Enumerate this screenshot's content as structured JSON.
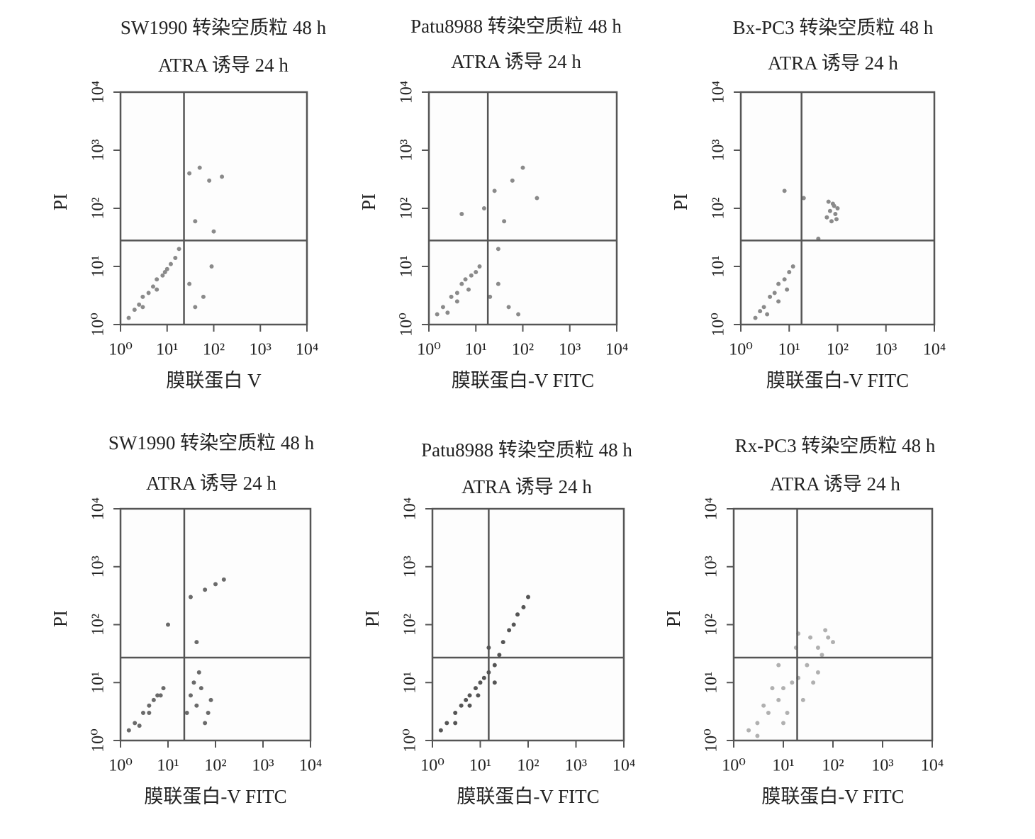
{
  "chart_data": [
    {
      "type": "scatter",
      "title": "SW1990 转染空质粒 48 h",
      "subtitle": "ATRA 诱导 24 h",
      "xlabel": "膜联蛋白 V",
      "ylabel": "PI",
      "x": [
        1.5,
        2,
        2.5,
        3,
        4,
        5,
        6,
        8,
        10,
        12,
        15,
        18,
        3,
        6,
        9,
        30,
        50,
        80,
        150,
        40,
        100,
        30,
        60,
        90,
        40
      ],
      "y": [
        1.3,
        1.8,
        2.2,
        3,
        3.5,
        4.5,
        6,
        7,
        9,
        11,
        14,
        20,
        2,
        4,
        8,
        400,
        500,
        300,
        350,
        60,
        40,
        5,
        3,
        10,
        2
      ],
      "color": "#8a8a8a",
      "log_x": true,
      "log_y": true,
      "xlim": [
        1,
        10000
      ],
      "ylim": [
        1,
        10000
      ],
      "xticks": [
        {
          "value": 1,
          "label": "10⁰"
        },
        {
          "value": 10,
          "label": "10¹"
        },
        {
          "value": 100,
          "label": "10²"
        },
        {
          "value": 1000,
          "label": "10³"
        },
        {
          "value": 10000,
          "label": "10⁴"
        }
      ],
      "yticks": [
        {
          "value": 1,
          "label": "10⁰"
        },
        {
          "value": 10,
          "label": "10¹"
        },
        {
          "value": 100,
          "label": "10²"
        },
        {
          "value": 1000,
          "label": "10³"
        },
        {
          "value": 10000,
          "label": "10⁴"
        }
      ],
      "quadrant": {
        "x": 23,
        "y": 28
      }
    },
    {
      "type": "scatter",
      "title": "Patu8988 转染空质粒 48 h",
      "subtitle": "ATRA 诱导 24 h",
      "xlabel": "膜联蛋白-V FITC",
      "ylabel": "PI",
      "x": [
        1.5,
        2,
        3,
        4,
        5,
        6,
        8,
        10,
        2.5,
        4,
        7,
        12,
        20,
        30,
        50,
        80,
        25,
        60,
        100,
        200,
        40,
        15,
        30,
        5
      ],
      "y": [
        1.5,
        2,
        3,
        3.5,
        5,
        6,
        7,
        8,
        1.6,
        2.5,
        4,
        10,
        3,
        5,
        2,
        1.5,
        200,
        300,
        500,
        150,
        60,
        100,
        20,
        80
      ],
      "color": "#8a8a8a",
      "log_x": true,
      "log_y": true,
      "xlim": [
        1,
        10000
      ],
      "ylim": [
        1,
        10000
      ],
      "xticks": [
        {
          "value": 1,
          "label": "10⁰"
        },
        {
          "value": 10,
          "label": "10¹"
        },
        {
          "value": 100,
          "label": "10²"
        },
        {
          "value": 1000,
          "label": "10³"
        },
        {
          "value": 10000,
          "label": "10⁴"
        }
      ],
      "yticks": [
        {
          "value": 1,
          "label": "10⁰"
        },
        {
          "value": 10,
          "label": "10¹"
        },
        {
          "value": 100,
          "label": "10²"
        },
        {
          "value": 1000,
          "label": "10³"
        },
        {
          "value": 10000,
          "label": "10⁴"
        }
      ],
      "quadrant": {
        "x": 18,
        "y": 28
      }
    },
    {
      "type": "scatter",
      "title": "Bx-PC3 转染空质粒 48 h",
      "subtitle": "ATRA 诱导 24 h",
      "xlabel": "膜联蛋白-V FITC",
      "ylabel": "PI",
      "x": [
        2,
        2.5,
        3,
        4,
        5,
        6,
        8,
        10,
        12,
        3.5,
        6,
        9,
        60,
        70,
        80,
        90,
        100,
        75,
        85,
        65,
        95,
        20,
        40,
        8
      ],
      "y": [
        1.3,
        1.7,
        2,
        3,
        3.5,
        5,
        6,
        8,
        10,
        1.5,
        2.5,
        4,
        70,
        90,
        120,
        80,
        100,
        60,
        110,
        130,
        65,
        150,
        30,
        200
      ],
      "color": "#8a8a8a",
      "log_x": true,
      "log_y": true,
      "xlim": [
        1,
        10000
      ],
      "ylim": [
        1,
        10000
      ],
      "xticks": [
        {
          "value": 1,
          "label": "10⁰"
        },
        {
          "value": 10,
          "label": "10¹"
        },
        {
          "value": 100,
          "label": "10²"
        },
        {
          "value": 1000,
          "label": "10³"
        },
        {
          "value": 10000,
          "label": "10⁴"
        }
      ],
      "yticks": [
        {
          "value": 1,
          "label": "10⁰"
        },
        {
          "value": 10,
          "label": "10¹"
        },
        {
          "value": 100,
          "label": "10²"
        },
        {
          "value": 1000,
          "label": "10³"
        },
        {
          "value": 10000,
          "label": "10⁴"
        }
      ],
      "quadrant": {
        "x": 18,
        "y": 28
      }
    },
    {
      "type": "scatter",
      "title": "SW1990 转染空质粒 48 h",
      "subtitle": "ATRA 诱导 24 h",
      "xlabel": "膜联蛋白-V FITC",
      "ylabel": "PI",
      "x": [
        1.5,
        2,
        3,
        4,
        5,
        6,
        8,
        2.5,
        4,
        7,
        25,
        30,
        40,
        50,
        60,
        80,
        35,
        45,
        70,
        30,
        60,
        100,
        150,
        40,
        10
      ],
      "y": [
        1.5,
        2,
        3,
        4,
        5,
        6,
        8,
        1.8,
        3,
        6,
        3,
        6,
        4,
        8,
        2,
        5,
        10,
        15,
        3,
        300,
        400,
        500,
        600,
        50,
        100
      ],
      "color": "#6a6a6a",
      "log_x": true,
      "log_y": true,
      "xlim": [
        1,
        10000
      ],
      "ylim": [
        1,
        10000
      ],
      "xticks": [
        {
          "value": 1,
          "label": "10⁰"
        },
        {
          "value": 10,
          "label": "10¹"
        },
        {
          "value": 100,
          "label": "10²"
        },
        {
          "value": 1000,
          "label": "10³"
        },
        {
          "value": 10000,
          "label": "10⁴"
        }
      ],
      "yticks": [
        {
          "value": 1,
          "label": "10⁰"
        },
        {
          "value": 10,
          "label": "10¹"
        },
        {
          "value": 100,
          "label": "10²"
        },
        {
          "value": 1000,
          "label": "10³"
        },
        {
          "value": 10000,
          "label": "10⁴"
        }
      ],
      "quadrant": {
        "x": 22,
        "y": 27
      }
    },
    {
      "type": "scatter",
      "title": "Patu8988 转染空质粒 48 h",
      "subtitle": "ATRA 诱导 24 h",
      "xlabel": "膜联蛋白-V FITC",
      "ylabel": "PI",
      "x": [
        1.5,
        2,
        3,
        4,
        5,
        6,
        8,
        10,
        12,
        15,
        3,
        6,
        9,
        20,
        25,
        30,
        40,
        50,
        80,
        100,
        20,
        15,
        60
      ],
      "y": [
        1.5,
        2,
        3,
        4,
        5,
        6,
        8,
        10,
        12,
        15,
        2,
        4,
        6,
        20,
        30,
        50,
        80,
        100,
        200,
        300,
        10,
        40,
        150
      ],
      "color": "#555555",
      "log_x": true,
      "log_y": true,
      "xlim": [
        1,
        10000
      ],
      "ylim": [
        1,
        10000
      ],
      "xticks": [
        {
          "value": 1,
          "label": "10⁰"
        },
        {
          "value": 10,
          "label": "10¹"
        },
        {
          "value": 100,
          "label": "10²"
        },
        {
          "value": 1000,
          "label": "10³"
        },
        {
          "value": 10000,
          "label": "10⁴"
        }
      ],
      "yticks": [
        {
          "value": 1,
          "label": "10⁰"
        },
        {
          "value": 10,
          "label": "10¹"
        },
        {
          "value": 100,
          "label": "10²"
        },
        {
          "value": 1000,
          "label": "10³"
        },
        {
          "value": 10000,
          "label": "10⁴"
        }
      ],
      "quadrant": {
        "x": 15,
        "y": 27
      }
    },
    {
      "type": "scatter",
      "title": "Rx-PC3 转染空质粒 48 h",
      "subtitle": "ATRA 诱导 24 h",
      "xlabel": "膜联蛋白-V FITC",
      "ylabel": "PI",
      "x": [
        2,
        3,
        5,
        8,
        10,
        15,
        20,
        30,
        50,
        80,
        100,
        4,
        6,
        12,
        25,
        40,
        60,
        3,
        8,
        18,
        35,
        70,
        10,
        20,
        50
      ],
      "y": [
        1.5,
        2,
        3,
        5,
        8,
        10,
        12,
        20,
        40,
        60,
        50,
        4,
        8,
        3,
        5,
        10,
        30,
        1.2,
        20,
        40,
        60,
        80,
        2,
        70,
        15
      ],
      "color": "#b0b0b0",
      "log_x": true,
      "log_y": true,
      "xlim": [
        1,
        10000
      ],
      "ylim": [
        1,
        10000
      ],
      "xticks": [
        {
          "value": 1,
          "label": "10⁰"
        },
        {
          "value": 10,
          "label": "10¹"
        },
        {
          "value": 100,
          "label": "10²"
        },
        {
          "value": 1000,
          "label": "10³"
        },
        {
          "value": 10000,
          "label": "10⁴"
        }
      ],
      "yticks": [
        {
          "value": 1,
          "label": "10⁰"
        },
        {
          "value": 10,
          "label": "10¹"
        },
        {
          "value": 100,
          "label": "10²"
        },
        {
          "value": 1000,
          "label": "10³"
        },
        {
          "value": 10000,
          "label": "10⁴"
        }
      ],
      "quadrant": {
        "x": 19,
        "y": 27
      }
    }
  ]
}
